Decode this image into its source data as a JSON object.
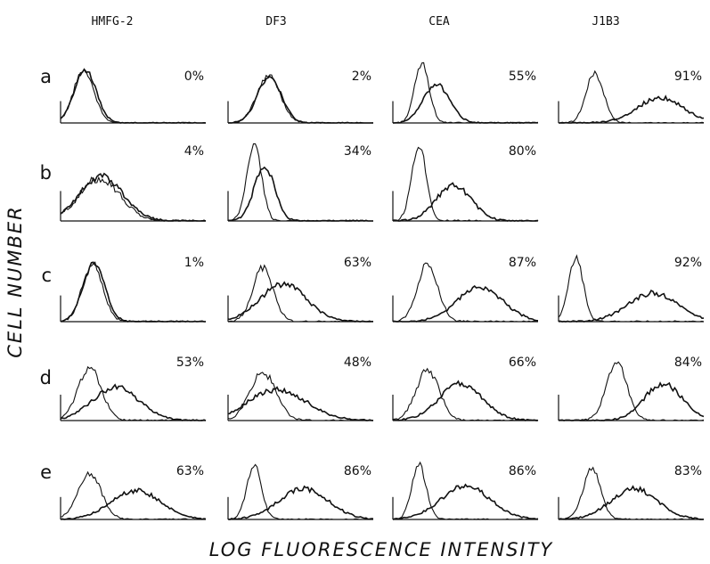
{
  "chart_data": {
    "type": "histogram-grid",
    "xlabel": "LOG FLUORESCENCE INTENSITY",
    "ylabel": "CELL NUMBER",
    "columns": [
      "HMFG-2",
      "DF3",
      "CEA",
      "J1B3"
    ],
    "rows": [
      "a",
      "b",
      "c",
      "d",
      "e"
    ],
    "panels": [
      {
        "row": "a",
        "column": "HMFG-2",
        "percent": "0%",
        "control": {
          "peak": 0.16,
          "width": 0.07,
          "height": 0.85
        },
        "test": {
          "peak": 0.17,
          "width": 0.075,
          "height": 0.85
        }
      },
      {
        "row": "a",
        "column": "DF3",
        "percent": "2%",
        "control": {
          "peak": 0.28,
          "width": 0.08,
          "height": 0.75
        },
        "test": {
          "peak": 0.285,
          "width": 0.082,
          "height": 0.74
        }
      },
      {
        "row": "a",
        "column": "CEA",
        "percent": "55%",
        "control": {
          "peak": 0.2,
          "width": 0.05,
          "height": 0.95
        },
        "test": {
          "peak": 0.3,
          "width": 0.09,
          "height": 0.62
        }
      },
      {
        "row": "a",
        "column": "J1B3",
        "percent": "91%",
        "control": {
          "peak": 0.25,
          "width": 0.06,
          "height": 0.8
        },
        "test": {
          "peak": 0.7,
          "width": 0.16,
          "height": 0.4
        }
      },
      {
        "row": "b",
        "column": "HMFG-2",
        "percent": "4%",
        "control": {
          "peak": 0.27,
          "width": 0.14,
          "height": 0.5
        },
        "test": {
          "peak": 0.28,
          "width": 0.15,
          "height": 0.52
        }
      },
      {
        "row": "b",
        "column": "DF3",
        "percent": "34%",
        "control": {
          "peak": 0.18,
          "width": 0.05,
          "height": 0.9
        },
        "test": {
          "peak": 0.25,
          "width": 0.07,
          "height": 0.65
        }
      },
      {
        "row": "b",
        "column": "CEA",
        "percent": "80%",
        "control": {
          "peak": 0.18,
          "width": 0.05,
          "height": 0.9
        },
        "test": {
          "peak": 0.42,
          "width": 0.12,
          "height": 0.42
        }
      },
      {
        "row": "c",
        "column": "HMFG-2",
        "percent": "1%",
        "control": {
          "peak": 0.22,
          "width": 0.07,
          "height": 0.78
        },
        "test": {
          "peak": 0.23,
          "width": 0.075,
          "height": 0.78
        }
      },
      {
        "row": "c",
        "column": "DF3",
        "percent": "63%",
        "control": {
          "peak": 0.24,
          "width": 0.07,
          "height": 0.72
        },
        "test": {
          "peak": 0.38,
          "width": 0.16,
          "height": 0.5
        }
      },
      {
        "row": "c",
        "column": "CEA",
        "percent": "87%",
        "control": {
          "peak": 0.24,
          "width": 0.07,
          "height": 0.78
        },
        "test": {
          "peak": 0.6,
          "width": 0.16,
          "height": 0.45
        }
      },
      {
        "row": "c",
        "column": "J1B3",
        "percent": "92%",
        "control": {
          "peak": 0.12,
          "width": 0.05,
          "height": 0.85
        },
        "test": {
          "peak": 0.65,
          "width": 0.17,
          "height": 0.38
        }
      },
      {
        "row": "d",
        "column": "HMFG-2",
        "percent": "53%",
        "control": {
          "peak": 0.2,
          "width": 0.08,
          "height": 0.72
        },
        "test": {
          "peak": 0.38,
          "width": 0.16,
          "height": 0.45
        }
      },
      {
        "row": "d",
        "column": "DF3",
        "percent": "48%",
        "control": {
          "peak": 0.24,
          "width": 0.09,
          "height": 0.65
        },
        "test": {
          "peak": 0.34,
          "width": 0.2,
          "height": 0.42
        }
      },
      {
        "row": "d",
        "column": "CEA",
        "percent": "66%",
        "control": {
          "peak": 0.24,
          "width": 0.08,
          "height": 0.68
        },
        "test": {
          "peak": 0.47,
          "width": 0.15,
          "height": 0.5
        }
      },
      {
        "row": "d",
        "column": "J1B3",
        "percent": "84%",
        "control": {
          "peak": 0.4,
          "width": 0.07,
          "height": 0.8
        },
        "test": {
          "peak": 0.72,
          "width": 0.13,
          "height": 0.5
        }
      },
      {
        "row": "e",
        "column": "HMFG-2",
        "percent": "63%",
        "control": {
          "peak": 0.2,
          "width": 0.08,
          "height": 0.72
        },
        "test": {
          "peak": 0.52,
          "width": 0.17,
          "height": 0.45
        }
      },
      {
        "row": "e",
        "column": "DF3",
        "percent": "86%",
        "control": {
          "peak": 0.18,
          "width": 0.05,
          "height": 0.85
        },
        "test": {
          "peak": 0.52,
          "width": 0.17,
          "height": 0.48
        }
      },
      {
        "row": "e",
        "column": "CEA",
        "percent": "86%",
        "control": {
          "peak": 0.18,
          "width": 0.05,
          "height": 0.85
        },
        "test": {
          "peak": 0.5,
          "width": 0.17,
          "height": 0.52
        }
      },
      {
        "row": "e",
        "column": "J1B3",
        "percent": "83%",
        "control": {
          "peak": 0.23,
          "width": 0.06,
          "height": 0.8
        },
        "test": {
          "peak": 0.52,
          "width": 0.16,
          "height": 0.48
        }
      }
    ]
  }
}
